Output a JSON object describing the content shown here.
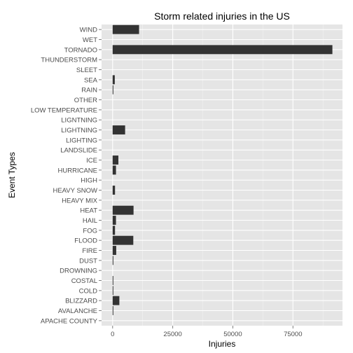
{
  "chart_data": {
    "type": "bar",
    "orientation": "horizontal",
    "title": "Storm related injuries in the US",
    "xlabel": "Injuries",
    "ylabel": "Event Types",
    "xlim": [
      -4600,
      95600
    ],
    "xticks": [
      0,
      25000,
      50000,
      75000
    ],
    "xtick_labels": [
      "0",
      "25000",
      "50000",
      "75000"
    ],
    "grid": true,
    "categories": [
      "WIND",
      "WET",
      "TORNADO",
      "THUNDERSTORM",
      "SLEET",
      "SEA",
      "RAIN",
      "OTHER",
      "LOW TEMPERATURE",
      "LIGNTNING",
      "LIGHTNING",
      "LIGHTING",
      "LANDSLIDE",
      "ICE",
      "HURRICANE",
      "HIGH",
      "HEAVY SNOW",
      "HEAVY MIX",
      "HEAT",
      "HAIL",
      "FOG",
      "FLOOD",
      "FIRE",
      "DUST",
      "DROWNING",
      "COSTAL",
      "COLD",
      "BLIZZARD",
      "AVALANCHE",
      "APACHE COUNTY"
    ],
    "values": [
      11000,
      0,
      91400,
      0,
      0,
      900,
      300,
      0,
      0,
      0,
      5200,
      0,
      0,
      2400,
      1400,
      0,
      1000,
      0,
      8700,
      1400,
      1000,
      8600,
      1500,
      300,
      0,
      200,
      100,
      2800,
      200,
      0
    ],
    "colors": {
      "panel": "#e5e5e5",
      "grid_major": "#ffffff",
      "grid_minor": "#f2f2f2",
      "bar": "#333333",
      "tick_text": "#4d4d4d"
    }
  }
}
